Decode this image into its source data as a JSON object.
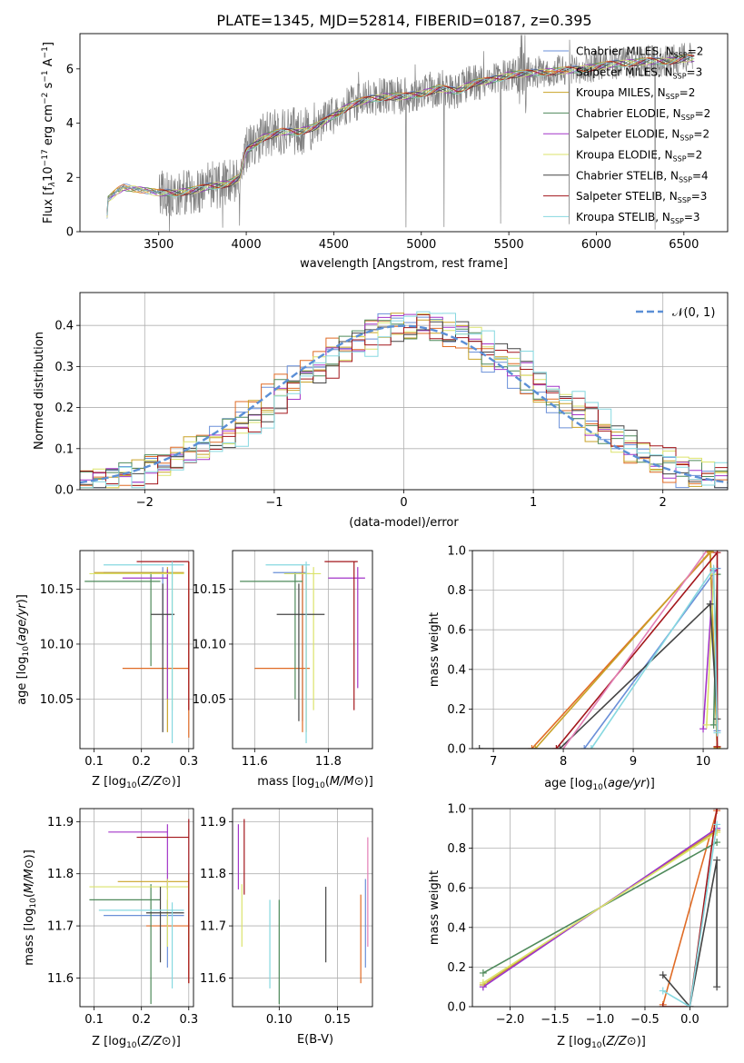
{
  "figure_title": "PLATE=1345, MJD=52814, FIBERID=0187, z=0.395",
  "colors": {
    "Chabrier MILES": "#6a8fd8",
    "Salpeter MILES": "#e06b25",
    "Kroupa MILES": "#c9a227",
    "Chabrier ELODIE": "#4f8a5b",
    "Salpeter ELODIE": "#a335c8",
    "Kroupa ELODIE": "#dbe36b",
    "Chabrier STELIB": "#444444",
    "Salpeter STELIB": "#a3161b",
    "Kroupa STELIB": "#86d8e0",
    "data": "#808080",
    "normal": "#5b8fd6",
    "pink": "#e37fb6"
  },
  "chart_data": [
    {
      "id": "spectrum",
      "type": "line",
      "xlabel": "wavelength [Angstrom, rest frame]",
      "ylabel_prefix": "Flux [f",
      "ylabel_suffix": "10",
      "ylabel_exp": "−17",
      "ylabel_units": " erg cm",
      "xlim": [
        3050,
        6750
      ],
      "ylim": [
        0,
        7.3
      ],
      "xticks": [
        3500,
        4000,
        4500,
        5000,
        5500,
        6000,
        6500
      ],
      "yticks": [
        0,
        2,
        4,
        6
      ],
      "legend_location": "right",
      "legend": [
        {
          "label": "Chabrier MILES, N",
          "nssp": "2",
          "color": "#6a8fd8"
        },
        {
          "label": "Salpeter MILES, N",
          "nssp": "3",
          "color": "#e06b25"
        },
        {
          "label": "Kroupa MILES, N",
          "nssp": "2",
          "color": "#c9a227"
        },
        {
          "label": "Chabrier ELODIE, N",
          "nssp": "2",
          "color": "#4f8a5b"
        },
        {
          "label": "Salpeter ELODIE, N",
          "nssp": "2",
          "color": "#a335c8"
        },
        {
          "label": "Kroupa ELODIE, N",
          "nssp": "2",
          "color": "#dbe36b"
        },
        {
          "label": "Chabrier STELIB, N",
          "nssp": "4",
          "color": "#444444"
        },
        {
          "label": "Salpeter STELIB, N",
          "nssp": "3",
          "color": "#a3161b"
        },
        {
          "label": "Kroupa STELIB, N",
          "nssp": "3",
          "color": "#86d8e0"
        }
      ],
      "continuum": [
        [
          3200,
          0
        ],
        [
          3210,
          1.2
        ],
        [
          3260,
          1.5
        ],
        [
          3300,
          1.65
        ],
        [
          3400,
          1.55
        ],
        [
          3500,
          1.45
        ],
        [
          3600,
          1.45
        ],
        [
          3700,
          1.55
        ],
        [
          3800,
          1.7
        ],
        [
          3900,
          1.8
        ],
        [
          3960,
          2.0
        ],
        [
          4000,
          3.0
        ],
        [
          4100,
          3.5
        ],
        [
          4200,
          3.7
        ],
        [
          4300,
          3.7
        ],
        [
          4400,
          3.9
        ],
        [
          4500,
          4.3
        ],
        [
          4600,
          4.7
        ],
        [
          4700,
          4.9
        ],
        [
          4800,
          5.0
        ],
        [
          4900,
          5.0
        ],
        [
          5000,
          5.1
        ],
        [
          5100,
          5.3
        ],
        [
          5200,
          5.2
        ],
        [
          5300,
          5.5
        ],
        [
          5400,
          5.6
        ],
        [
          5500,
          5.8
        ],
        [
          5700,
          5.9
        ],
        [
          5900,
          6.0
        ],
        [
          6100,
          6.2
        ],
        [
          6300,
          6.3
        ],
        [
          6400,
          6.3
        ],
        [
          6500,
          6.4
        ]
      ]
    },
    {
      "id": "residuals",
      "type": "line",
      "xlabel": "(data-model)/error",
      "ylabel": "Normed distribution",
      "xlim": [
        -2.5,
        2.5
      ],
      "ylim": [
        0,
        0.48
      ],
      "xticks": [
        -2,
        -1,
        0,
        1,
        2
      ],
      "yticks": [
        0.0,
        0.1,
        0.2,
        0.3,
        0.4
      ],
      "legend_label": "𝒩(0, 1)",
      "legend_location": "top-right",
      "grid": true
    },
    {
      "id": "age_vs_Z",
      "type": "scatter",
      "xlabel_prefix": "Z [log",
      "ylabel_prefix": "age  [log",
      "xlim": [
        0.07,
        0.31
      ],
      "ylim": [
        10.005,
        10.185
      ],
      "xticks": [
        0.1,
        0.2,
        0.3
      ],
      "yticks": [
        10.05,
        10.1,
        10.15
      ],
      "grid": true,
      "points": [
        {
          "s": "Chabrier MILES",
          "x": 0.245,
          "y": 10.165,
          "xe": [
            0.12,
            0.245
          ],
          "ye": [
            10.1,
            10.17
          ]
        },
        {
          "s": "Salpeter MILES",
          "x": 0.3,
          "y": 10.078,
          "xe": [
            0.16,
            0.3
          ],
          "ye": [
            10.015,
            10.175
          ]
        },
        {
          "s": "Kroupa MILES",
          "x": 0.255,
          "y": 10.165,
          "xe": [
            0.1,
            0.29
          ],
          "ye": [
            10.02,
            10.17
          ]
        },
        {
          "s": "Chabrier ELODIE",
          "x": 0.22,
          "y": 10.157,
          "xe": [
            0.08,
            0.24
          ],
          "ye": [
            10.08,
            10.165
          ]
        },
        {
          "s": "Salpeter ELODIE",
          "x": 0.255,
          "y": 10.16,
          "xe": [
            0.16,
            0.255
          ],
          "ye": [
            10.05,
            10.168
          ]
        },
        {
          "s": "Kroupa ELODIE",
          "x": 0.265,
          "y": 10.164,
          "xe": [
            0.09,
            0.29
          ],
          "ye": [
            10.04,
            10.17
          ]
        },
        {
          "s": "Chabrier STELIB",
          "x": 0.245,
          "y": 10.127,
          "xe": [
            0.22,
            0.27
          ],
          "ye": [
            10.02,
            10.155
          ]
        },
        {
          "s": "Salpeter STELIB",
          "x": 0.3,
          "y": 10.175,
          "xe": [
            0.19,
            0.3
          ],
          "ye": [
            10.04,
            10.175
          ]
        },
        {
          "s": "Kroupa STELIB",
          "x": 0.265,
          "y": 10.172,
          "xe": [
            0.12,
            0.29
          ],
          "ye": [
            10.01,
            10.175
          ]
        }
      ]
    },
    {
      "id": "age_vs_mass",
      "type": "scatter",
      "xlabel_prefix": "mass [log",
      "xlim": [
        11.54,
        11.92
      ],
      "ylim": [
        10.005,
        10.185
      ],
      "xticks": [
        11.6,
        11.8
      ],
      "yticks": [
        10.05,
        10.1,
        10.15
      ],
      "grid": true,
      "points": [
        {
          "s": "Chabrier MILES",
          "x": 11.73,
          "y": 10.165,
          "xe": [
            11.65,
            11.74
          ],
          "ye": [
            10.03,
            10.172
          ]
        },
        {
          "s": "Salpeter MILES",
          "x": 11.73,
          "y": 10.078,
          "xe": [
            11.6,
            11.75
          ],
          "ye": [
            10.02,
            10.172
          ]
        },
        {
          "s": "Kroupa MILES",
          "x": 11.74,
          "y": 10.164,
          "xe": [
            11.72,
            11.75
          ],
          "ye": [
            10.02,
            10.17
          ]
        },
        {
          "s": "Chabrier ELODIE",
          "x": 11.71,
          "y": 10.157,
          "xe": [
            11.56,
            11.73
          ],
          "ye": [
            10.05,
            10.165
          ]
        },
        {
          "s": "Salpeter ELODIE",
          "x": 11.88,
          "y": 10.16,
          "xe": [
            11.8,
            11.9
          ],
          "ye": [
            10.06,
            10.17
          ]
        },
        {
          "s": "Kroupa ELODIE",
          "x": 11.76,
          "y": 10.164,
          "xe": [
            11.68,
            11.78
          ],
          "ye": [
            10.04,
            10.17
          ]
        },
        {
          "s": "Chabrier STELIB",
          "x": 11.72,
          "y": 10.127,
          "xe": [
            11.66,
            11.79
          ],
          "ye": [
            10.03,
            10.155
          ]
        },
        {
          "s": "Salpeter STELIB",
          "x": 11.87,
          "y": 10.175,
          "xe": [
            11.79,
            11.88
          ],
          "ye": [
            10.04,
            10.175
          ]
        },
        {
          "s": "Kroupa STELIB",
          "x": 11.74,
          "y": 10.172,
          "xe": [
            11.63,
            11.75
          ],
          "ye": [
            10.01,
            10.175
          ]
        }
      ]
    },
    {
      "id": "weight_vs_age",
      "type": "line",
      "xlabel_prefix": "age  [log",
      "ylabel": "mass weight",
      "xlim": [
        6.7,
        10.35
      ],
      "ylim": [
        0,
        1
      ],
      "xticks": [
        7,
        8,
        9,
        10
      ],
      "yticks": [
        0.0,
        0.2,
        0.4,
        0.6,
        0.8,
        1.0
      ],
      "grid": true,
      "series": [
        {
          "s": "Chabrier MILES",
          "pts": [
            [
              8.3,
              0
            ],
            [
              10.2,
              0.91
            ],
            [
              10.2,
              0.09
            ]
          ]
        },
        {
          "s": "Salpeter MILES",
          "pts": [
            [
              7.55,
              0
            ],
            [
              10.1,
              0.99
            ],
            [
              10.2,
              0.01
            ]
          ]
        },
        {
          "s": "Kroupa MILES",
          "pts": [
            [
              7.6,
              0
            ],
            [
              10.1,
              0.995
            ],
            [
              10.2,
              0.005
            ]
          ]
        },
        {
          "s": "Chabrier ELODIE",
          "pts": [
            [
              10.15,
              0.12
            ],
            [
              10.2,
              0.88
            ]
          ]
        },
        {
          "s": "Salpeter ELODIE",
          "pts": [
            [
              10.0,
              0.1
            ],
            [
              10.15,
              0.9
            ]
          ]
        },
        {
          "s": "Kroupa ELODIE",
          "pts": [
            [
              10.05,
              0.12
            ],
            [
              10.15,
              0.88
            ]
          ]
        },
        {
          "s": "Chabrier STELIB",
          "pts": [
            [
              6.8,
              0
            ],
            [
              7.95,
              0
            ],
            [
              10.1,
              0.73
            ],
            [
              10.2,
              0.15
            ]
          ]
        },
        {
          "s": "Salpeter STELIB",
          "pts": [
            [
              7.9,
              0
            ],
            [
              10.2,
              0.99
            ],
            [
              10.2,
              0.01
            ]
          ]
        },
        {
          "s": "Kroupa STELIB",
          "pts": [
            [
              8.4,
              0
            ],
            [
              10.15,
              0.91
            ],
            [
              10.2,
              0.08
            ]
          ]
        }
      ],
      "extra": {
        "color": "#e37fb6",
        "pts": [
          [
            8.0,
            0
          ],
          [
            10.05,
            1.0
          ]
        ]
      }
    },
    {
      "id": "mass_vs_Z",
      "type": "scatter",
      "xlabel_prefix": "Z [log",
      "ylabel_prefix": "mass [log",
      "xlim": [
        0.07,
        0.31
      ],
      "ylim": [
        11.545,
        11.925
      ],
      "xticks": [
        0.1,
        0.2,
        0.3
      ],
      "yticks": [
        11.6,
        11.7,
        11.8,
        11.9
      ],
      "grid": true,
      "points": [
        {
          "s": "Chabrier MILES",
          "x": 0.255,
          "y": 11.72,
          "xe": [
            0.12,
            0.29
          ],
          "ye": [
            11.62,
            11.75
          ]
        },
        {
          "s": "Salpeter MILES",
          "x": 0.3,
          "y": 11.7,
          "xe": [
            0.21,
            0.3
          ],
          "ye": [
            11.59,
            11.73
          ]
        },
        {
          "s": "Kroupa MILES",
          "x": 0.3,
          "y": 11.785,
          "xe": [
            0.15,
            0.3
          ],
          "ye": [
            11.66,
            11.8
          ]
        },
        {
          "s": "Chabrier ELODIE",
          "x": 0.22,
          "y": 11.75,
          "xe": [
            0.09,
            0.24
          ],
          "ye": [
            11.55,
            11.78
          ]
        },
        {
          "s": "Salpeter ELODIE",
          "x": 0.255,
          "y": 11.88,
          "xe": [
            0.13,
            0.255
          ],
          "ye": [
            11.77,
            11.895
          ]
        },
        {
          "s": "Kroupa ELODIE",
          "x": 0.255,
          "y": 11.775,
          "xe": [
            0.09,
            0.3
          ],
          "ye": [
            11.66,
            11.79
          ]
        },
        {
          "s": "Chabrier STELIB",
          "x": 0.24,
          "y": 11.725,
          "xe": [
            0.21,
            0.29
          ],
          "ye": [
            11.63,
            11.775
          ]
        },
        {
          "s": "Salpeter STELIB",
          "x": 0.3,
          "y": 11.87,
          "xe": [
            0.19,
            0.3
          ],
          "ye": [
            11.59,
            11.905
          ]
        },
        {
          "s": "Kroupa STELIB",
          "x": 0.265,
          "y": 11.73,
          "xe": [
            0.11,
            0.29
          ],
          "ye": [
            11.58,
            11.745
          ]
        }
      ]
    },
    {
      "id": "mass_vs_ebv",
      "type": "scatter",
      "xlabel": "E(B-V)",
      "xlim": [
        0.06,
        0.18
      ],
      "ylim": [
        11.545,
        11.925
      ],
      "xticks": [
        0.1,
        0.15
      ],
      "yticks": [
        11.6,
        11.7,
        11.8,
        11.9
      ],
      "grid": true,
      "bars": [
        {
          "s": "Salpeter ELODIE",
          "x": 0.065,
          "ye": [
            11.77,
            11.895
          ]
        },
        {
          "s": "Salpeter STELIB",
          "x": 0.07,
          "ye": [
            11.76,
            11.905
          ]
        },
        {
          "s": "Kroupa ELODIE",
          "x": 0.068,
          "ye": [
            11.66,
            11.78
          ]
        },
        {
          "s": "Kroupa STELIB",
          "x": 0.092,
          "ye": [
            11.58,
            11.75
          ]
        },
        {
          "s": "Chabrier ELODIE",
          "x": 0.1,
          "ye": [
            11.55,
            11.75
          ]
        },
        {
          "s": "Chabrier STELIB",
          "x": 0.14,
          "ye": [
            11.63,
            11.775
          ]
        },
        {
          "s": "Salpeter MILES",
          "x": 0.17,
          "ye": [
            11.59,
            11.76
          ]
        },
        {
          "s": "Chabrier MILES",
          "x": 0.174,
          "ye": [
            11.62,
            11.79
          ]
        },
        {
          "s": "Kroupa MILES",
          "x": 0.176,
          "ye": [
            11.66,
            11.87
          ],
          "color": "#e37fb6"
        }
      ]
    },
    {
      "id": "weight_vs_Z",
      "type": "line",
      "xlabel_prefix": "Z [log",
      "ylabel": "mass weight",
      "xlim": [
        -2.42,
        0.42
      ],
      "ylim": [
        0,
        1
      ],
      "xticks": [
        -2.0,
        -1.5,
        -1.0,
        -0.5,
        0.0
      ],
      "yticks": [
        0.0,
        0.2,
        0.4,
        0.6,
        0.8,
        1.0
      ],
      "grid": true,
      "series": [
        {
          "s": "Chabrier MILES",
          "pts": [
            [
              -2.3,
              0.1
            ],
            [
              0.3,
              0.9
            ]
          ]
        },
        {
          "s": "Salpeter MILES",
          "pts": [
            [
              -0.3,
              0.01
            ],
            [
              0.3,
              0.99
            ]
          ]
        },
        {
          "s": "Kroupa MILES",
          "pts": [
            [
              -2.3,
              0.11
            ],
            [
              0.3,
              0.89
            ]
          ]
        },
        {
          "s": "Chabrier ELODIE",
          "pts": [
            [
              -2.3,
              0.17
            ],
            [
              0.3,
              0.83
            ]
          ]
        },
        {
          "s": "Salpeter ELODIE",
          "pts": [
            [
              -2.3,
              0.1
            ],
            [
              0.3,
              0.9
            ]
          ]
        },
        {
          "s": "Kroupa ELODIE",
          "pts": [
            [
              -2.3,
              0.12
            ],
            [
              0.3,
              0.88
            ]
          ]
        },
        {
          "s": "Chabrier STELIB",
          "pts": [
            [
              -0.3,
              0.16
            ],
            [
              0.0,
              0.0
            ],
            [
              0.3,
              0.74
            ],
            [
              0.3,
              0.1
            ]
          ]
        },
        {
          "s": "Salpeter STELIB",
          "pts": [
            [
              -0.3,
              0.0
            ],
            [
              0.0,
              0.0
            ],
            [
              0.3,
              1.0
            ]
          ]
        },
        {
          "s": "Kroupa STELIB",
          "pts": [
            [
              -0.3,
              0.08
            ],
            [
              0.0,
              0.0
            ],
            [
              0.3,
              0.92
            ]
          ]
        }
      ]
    }
  ]
}
